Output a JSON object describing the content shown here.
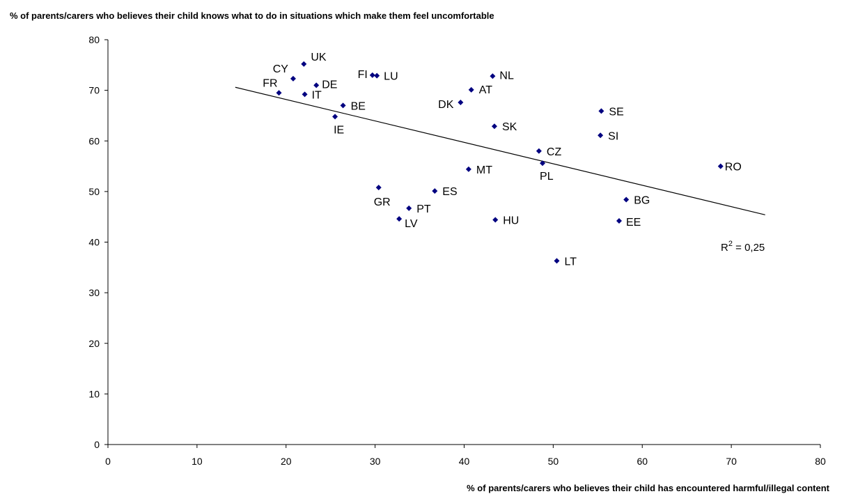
{
  "chart_data": {
    "type": "scatter",
    "title": "% of parents/carers who believes their child knows what to do in situations which make them feel uncomfortable",
    "xlabel": "% of parents/carers who believes their child has encountered harmful/illegal content",
    "ylabel": "",
    "xlim": [
      0,
      80
    ],
    "ylim": [
      0,
      80
    ],
    "xticks": [
      0,
      10,
      20,
      30,
      40,
      50,
      60,
      70,
      80
    ],
    "yticks": [
      0,
      10,
      20,
      30,
      40,
      50,
      60,
      70,
      80
    ],
    "grid": false,
    "legend": "none",
    "marker_color": "#000080",
    "points": [
      {
        "label": "UK",
        "x": 22.0,
        "y": 75.2
      },
      {
        "label": "CY",
        "x": 20.8,
        "y": 72.3
      },
      {
        "label": "DE",
        "x": 23.4,
        "y": 71.0
      },
      {
        "label": "FR",
        "x": 19.2,
        "y": 69.5
      },
      {
        "label": "IT",
        "x": 22.1,
        "y": 69.2
      },
      {
        "label": "BE",
        "x": 26.4,
        "y": 67.0
      },
      {
        "label": "IE",
        "x": 25.5,
        "y": 64.8
      },
      {
        "label": "FI",
        "x": 29.7,
        "y": 73.0
      },
      {
        "label": "LU",
        "x": 30.2,
        "y": 72.9
      },
      {
        "label": "NL",
        "x": 43.2,
        "y": 72.8
      },
      {
        "label": "AT",
        "x": 40.8,
        "y": 70.1
      },
      {
        "label": "DK",
        "x": 39.6,
        "y": 67.6
      },
      {
        "label": "SK",
        "x": 43.4,
        "y": 62.9
      },
      {
        "label": "SE",
        "x": 55.4,
        "y": 65.9
      },
      {
        "label": "SI",
        "x": 55.3,
        "y": 61.1
      },
      {
        "label": "CZ",
        "x": 48.4,
        "y": 58.0
      },
      {
        "label": "PL",
        "x": 48.8,
        "y": 55.6
      },
      {
        "label": "RO",
        "x": 68.8,
        "y": 55.0
      },
      {
        "label": "MT",
        "x": 40.5,
        "y": 54.4
      },
      {
        "label": "GR",
        "x": 30.4,
        "y": 50.8
      },
      {
        "label": "ES",
        "x": 36.7,
        "y": 50.1
      },
      {
        "label": "PT",
        "x": 33.8,
        "y": 46.7
      },
      {
        "label": "LV",
        "x": 32.7,
        "y": 44.6
      },
      {
        "label": "HU",
        "x": 43.5,
        "y": 44.4
      },
      {
        "label": "BG",
        "x": 58.2,
        "y": 48.4
      },
      {
        "label": "EE",
        "x": 57.4,
        "y": 44.2
      },
      {
        "label": "LT",
        "x": 50.4,
        "y": 36.3
      }
    ],
    "trendline": {
      "x": [
        14.3,
        73.8
      ],
      "y": [
        70.6,
        45.4
      ]
    },
    "r_squared_label": {
      "base": "R",
      "exponent": "2",
      "value_text": " = 0,25"
    }
  }
}
